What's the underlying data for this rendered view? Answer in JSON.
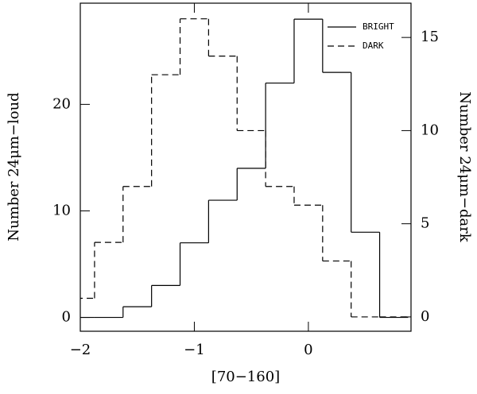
{
  "chart_data": {
    "type": "histogram",
    "xlabel": "[70−160]",
    "ylabel": "Number 24μm−loud",
    "y2label": "Number 24μm−dark",
    "bins": [
      -2.125,
      -1.875,
      -1.625,
      -1.375,
      -1.125,
      -0.875,
      -0.625,
      -0.375,
      -0.125,
      0.125,
      0.375,
      0.625,
      0.875
    ],
    "series": [
      {
        "name": "BRIGHT",
        "color": "#000000",
        "dash": "solid",
        "values": [
          0,
          0,
          1,
          3,
          7,
          11,
          14,
          22,
          28,
          23,
          8,
          0
        ]
      },
      {
        "name": "DARK",
        "color": "#000000",
        "dash": "dashed",
        "axis": "y2",
        "values": [
          1,
          4,
          7,
          13,
          16,
          14,
          10,
          7,
          6,
          3,
          0,
          0
        ]
      }
    ],
    "xlim": [
      -2,
      0.9
    ],
    "xticks": [
      {
        "value": -2,
        "label": "−2"
      },
      {
        "value": -1,
        "label": "−1"
      },
      0
    ],
    "ylim": [
      -1.3,
      29.5
    ],
    "yticks": [
      0,
      10,
      20
    ],
    "y2lim": [
      -0.77,
      16.84
    ],
    "y2ticks": [
      0,
      5,
      10,
      15
    ],
    "legend": "upper right"
  }
}
